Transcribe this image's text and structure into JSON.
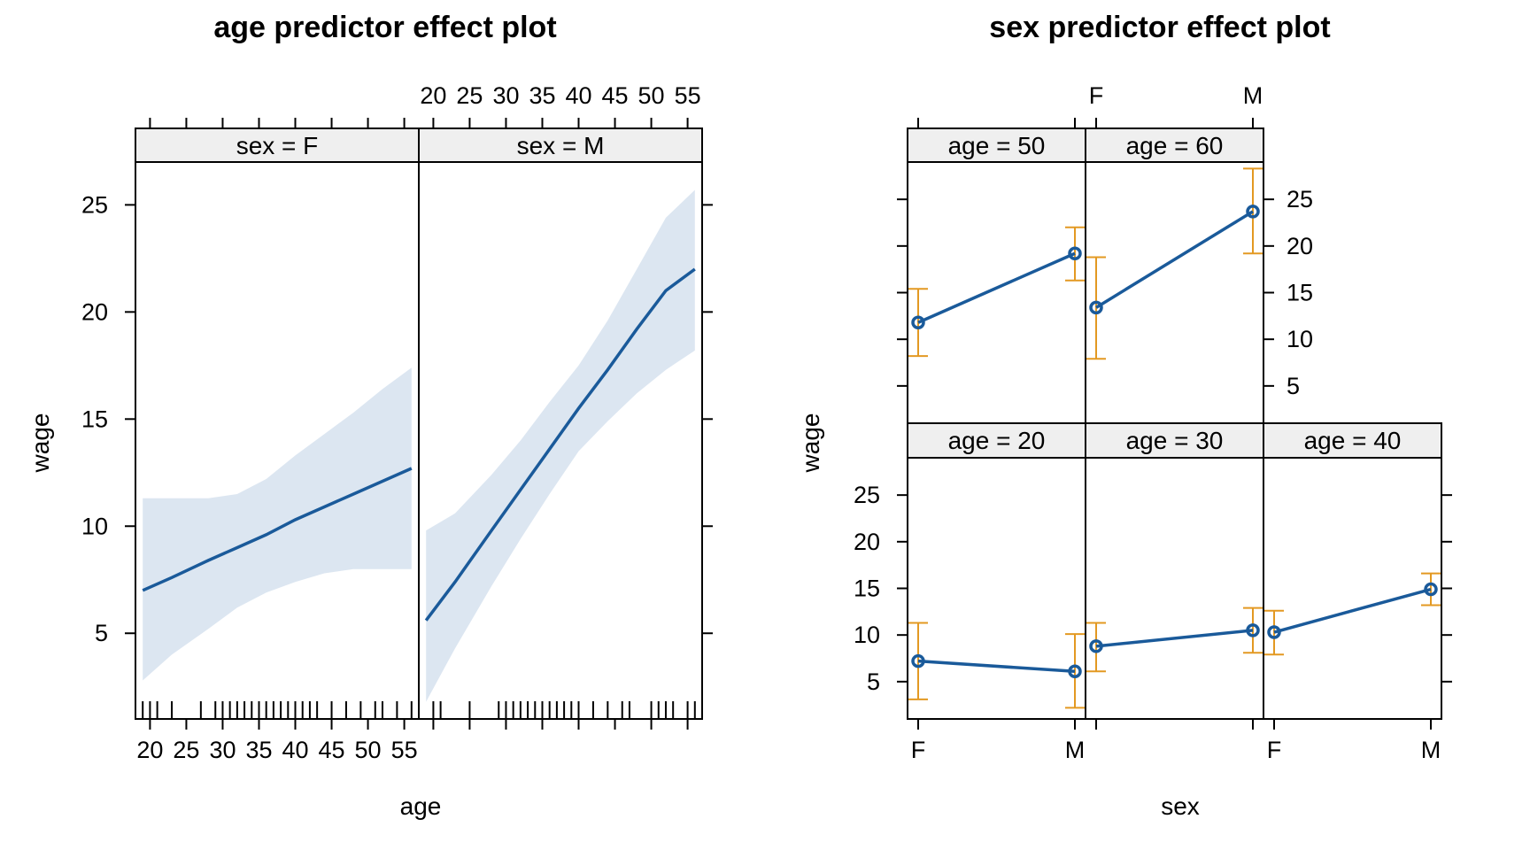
{
  "colors": {
    "line": "#1a5a9a",
    "band": "#dce6f1",
    "error_bar": "#e39922",
    "strip": "#efefef"
  },
  "chart_data": [
    {
      "type": "line",
      "title": "age predictor effect plot",
      "xlabel": "age",
      "ylabel": "wage",
      "xlim": [
        18,
        57
      ],
      "ylim": [
        1,
        27
      ],
      "x_ticks": [
        20,
        25,
        30,
        35,
        40,
        45,
        50,
        55
      ],
      "y_ticks": [
        5,
        10,
        15,
        20,
        25
      ],
      "confidence_band": true,
      "rug": true,
      "panels": [
        {
          "strip": "sex = F",
          "x": [
            19,
            23,
            28,
            32,
            36,
            40,
            44,
            48,
            52,
            56
          ],
          "fit": [
            7.0,
            7.6,
            8.4,
            9.0,
            9.6,
            10.3,
            10.9,
            11.5,
            12.1,
            12.7
          ],
          "lower": [
            2.8,
            4.0,
            5.2,
            6.2,
            6.9,
            7.4,
            7.8,
            8.0,
            8.0,
            8.0
          ],
          "upper": [
            11.3,
            11.3,
            11.3,
            11.5,
            12.2,
            13.3,
            14.3,
            15.3,
            16.4,
            17.4
          ],
          "rug": [
            19,
            20,
            21,
            23,
            27,
            29,
            30,
            31,
            32,
            33,
            34,
            35,
            36,
            37,
            38,
            39,
            40,
            41,
            42,
            43,
            45,
            47,
            49,
            51,
            52,
            54,
            56
          ]
        },
        {
          "strip": "sex = M",
          "x": [
            19,
            23,
            28,
            32,
            36,
            40,
            44,
            48,
            52,
            56
          ],
          "fit": [
            5.6,
            7.4,
            9.8,
            11.7,
            13.6,
            15.5,
            17.3,
            19.2,
            21.0,
            22.0
          ],
          "lower": [
            1.8,
            4.3,
            7.2,
            9.4,
            11.5,
            13.5,
            14.9,
            16.2,
            17.3,
            18.2
          ],
          "upper": [
            9.8,
            10.6,
            12.4,
            14.0,
            15.8,
            17.5,
            19.6,
            22.0,
            24.4,
            25.7
          ],
          "rug": [
            20,
            21,
            25,
            29,
            30,
            31,
            32,
            33,
            34,
            35,
            36,
            37,
            38,
            39,
            40,
            42,
            44,
            46,
            47,
            50,
            51,
            52,
            53,
            55,
            56
          ]
        }
      ]
    },
    {
      "type": "line",
      "title": "sex predictor effect plot",
      "xlabel": "sex",
      "ylabel": "wage",
      "categories": [
        "F",
        "M"
      ],
      "ylim": [
        1,
        29
      ],
      "y_ticks": [
        5,
        10,
        15,
        20,
        25
      ],
      "error_bars": true,
      "panels": [
        {
          "strip": "age = 20",
          "values": [
            7.2,
            6.1
          ],
          "lower": [
            3.1,
            2.2
          ],
          "upper": [
            11.3,
            10.1
          ]
        },
        {
          "strip": "age = 30",
          "values": [
            8.8,
            10.5
          ],
          "lower": [
            6.1,
            8.1
          ],
          "upper": [
            11.3,
            12.9
          ]
        },
        {
          "strip": "age = 40",
          "values": [
            10.3,
            14.9
          ],
          "lower": [
            7.9,
            13.2
          ],
          "upper": [
            12.6,
            16.6
          ]
        },
        {
          "strip": "age = 50",
          "values": [
            11.8,
            19.2
          ],
          "lower": [
            8.2,
            16.3
          ],
          "upper": [
            15.4,
            22.0
          ]
        },
        {
          "strip": "age = 60",
          "values": [
            13.4,
            23.7
          ],
          "lower": [
            7.9,
            19.2
          ],
          "upper": [
            18.8,
            28.3
          ]
        }
      ]
    }
  ]
}
